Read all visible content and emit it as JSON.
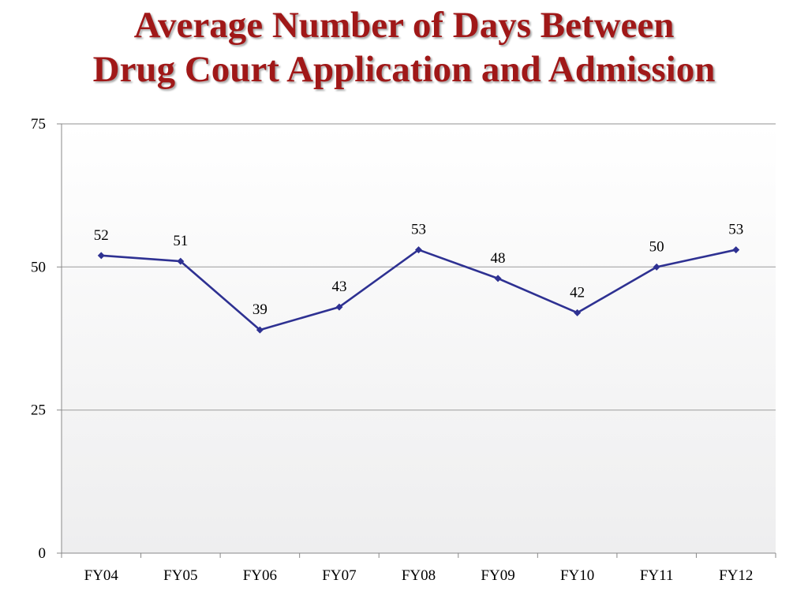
{
  "title": {
    "line1": "Average Number of Days Between",
    "line2": "Drug Court Application and Admission"
  },
  "colors": {
    "title": "#a01818",
    "series": "#2e3192",
    "gridline": "#a6a6a6"
  },
  "chart_data": {
    "type": "line",
    "title": "Average Number of Days Between Drug Court Application and Admission",
    "categories": [
      "FY04",
      "FY05",
      "FY06",
      "FY07",
      "FY08",
      "FY09",
      "FY10",
      "FY11",
      "FY12"
    ],
    "series": [
      {
        "values": [
          52,
          51,
          39,
          43,
          53,
          48,
          42,
          50,
          53
        ]
      }
    ],
    "ylim": [
      0,
      75
    ],
    "yticks": [
      0,
      25,
      50,
      75
    ],
    "xlabel": "",
    "ylabel": "",
    "grid": true,
    "marker": "diamond",
    "data_labels": true
  }
}
